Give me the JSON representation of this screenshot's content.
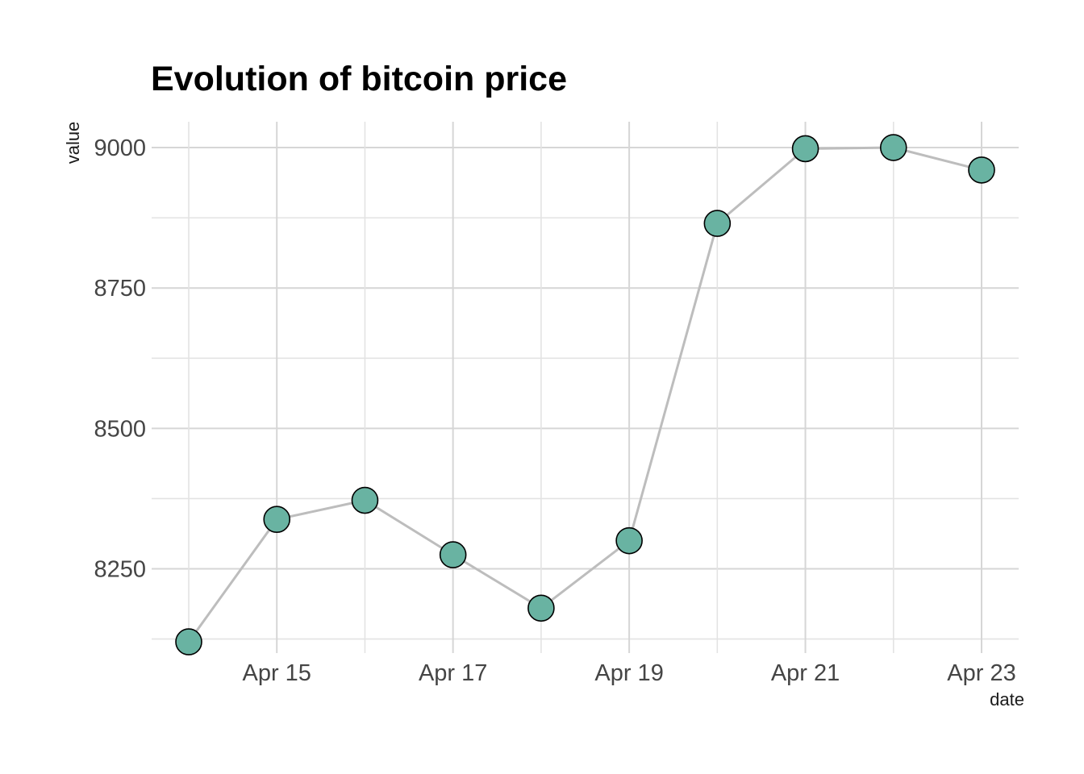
{
  "chart_data": {
    "type": "line",
    "title": "Evolution of bitcoin price",
    "xlabel": "date",
    "ylabel": "value",
    "series_name": "bitcoin price",
    "x": [
      "Apr 14",
      "Apr 15",
      "Apr 16",
      "Apr 17",
      "Apr 18",
      "Apr 19",
      "Apr 20",
      "Apr 21",
      "Apr 22",
      "Apr 23"
    ],
    "values": [
      8120,
      8338,
      8372,
      8275,
      8180,
      8300,
      8865,
      8998,
      9000,
      8960
    ],
    "y_major_ticks": [
      8250,
      8500,
      8750,
      9000
    ],
    "y_minor_ticks": [
      8125,
      8375,
      8625,
      8875
    ],
    "x_labeled_ticks": [
      "Apr 15",
      "Apr 17",
      "Apr 19",
      "Apr 21",
      "Apr 23"
    ],
    "ylim": [
      8100,
      9046
    ],
    "grid": "on",
    "legend": "none",
    "marker": "circle",
    "colors": {
      "point_fill": "#69b3a2",
      "point_stroke": "#000000",
      "line": "#bdbdbd",
      "grid_major": "#d6d6d6",
      "grid_minor": "#e3e3e3",
      "tick_text": "#454545",
      "axis_title_text": "#1a1a1a",
      "title_text": "#000000",
      "background": "#ffffff"
    }
  }
}
